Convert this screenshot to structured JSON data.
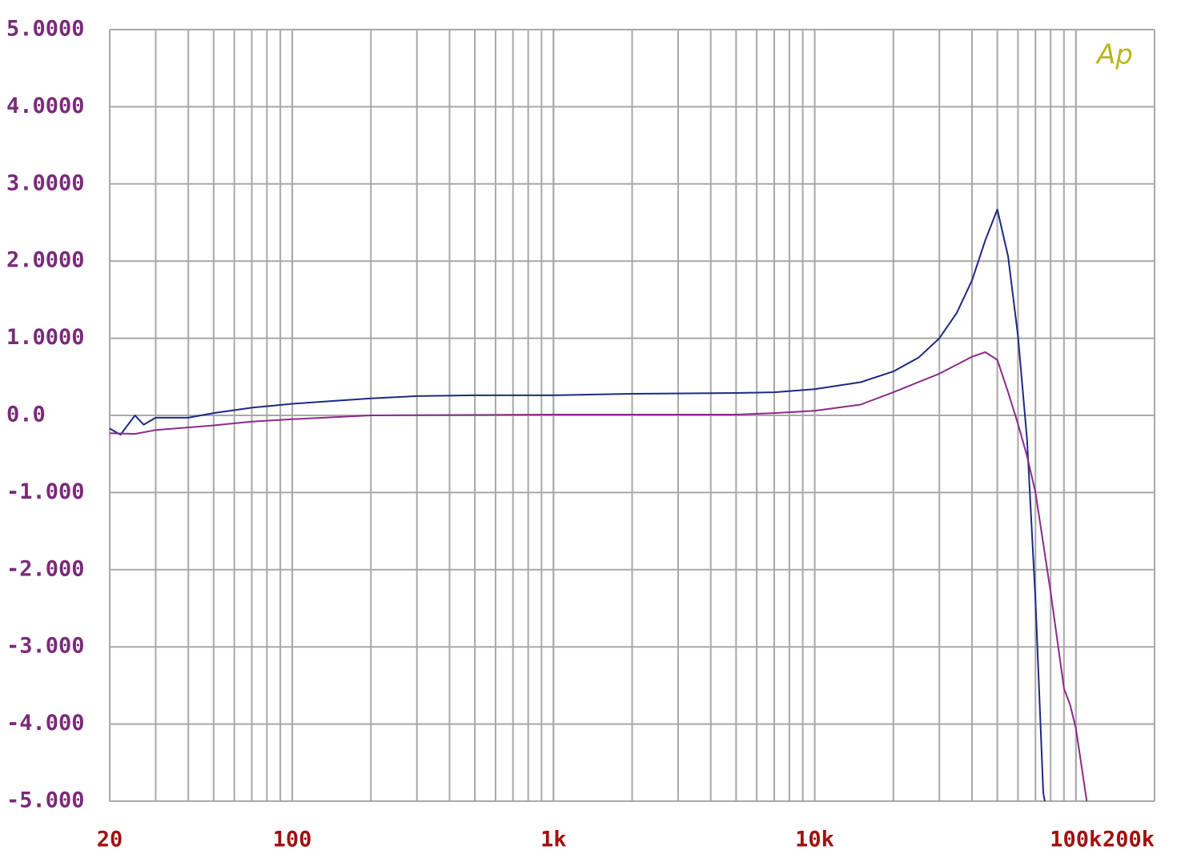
{
  "chart_data": {
    "type": "line",
    "logo": "Ap",
    "xscale": "log",
    "grid": true,
    "minor_grid": true,
    "xlim": [
      20,
      200000
    ],
    "ylim": [
      -5,
      5
    ],
    "xticks": [
      20,
      100,
      {
        "value": 1000,
        "label": "1k"
      },
      {
        "value": 10000,
        "label": "10k"
      },
      {
        "value": 100000,
        "label": "100k"
      },
      {
        "value": 200000,
        "label": "200k"
      }
    ],
    "yticks": [
      {
        "value": 5,
        "label": "5.0000"
      },
      {
        "value": 4,
        "label": "4.0000"
      },
      {
        "value": 3,
        "label": "3.0000"
      },
      {
        "value": 2,
        "label": "2.0000"
      },
      {
        "value": 1,
        "label": "1.0000"
      },
      {
        "value": 0,
        "label": "0.0"
      },
      {
        "value": -1,
        "label": "-1.000"
      },
      {
        "value": -2,
        "label": "-2.000"
      },
      {
        "value": -3,
        "label": "-3.000"
      },
      {
        "value": -4,
        "label": "-4.000"
      },
      {
        "value": -5,
        "label": "-5.000"
      }
    ],
    "series": [
      {
        "color": "#1c2a80",
        "x": [
          20,
          22,
          25,
          27,
          30,
          40,
          50,
          70,
          100,
          200,
          300,
          500,
          1000,
          2000,
          5000,
          7000,
          10000,
          15000,
          20000,
          25000,
          30000,
          35000,
          40000,
          45000,
          50000,
          55000,
          60000,
          65000,
          70000,
          75000,
          76000
        ],
        "values": [
          -0.17,
          -0.25,
          0.0,
          -0.12,
          -0.03,
          -0.03,
          0.03,
          0.1,
          0.15,
          0.22,
          0.25,
          0.26,
          0.26,
          0.28,
          0.29,
          0.3,
          0.34,
          0.43,
          0.57,
          0.75,
          1.0,
          1.33,
          1.75,
          2.27,
          2.67,
          2.06,
          1.03,
          -0.32,
          -2.4,
          -4.89,
          -5.0
        ]
      },
      {
        "color": "#8a2a8a",
        "x": [
          20,
          25,
          30,
          50,
          70,
          100,
          200,
          1000,
          5000,
          7000,
          10000,
          15000,
          20000,
          30000,
          40000,
          45000,
          50000,
          55000,
          60000,
          65000,
          70000,
          80000,
          90000,
          95000,
          100000,
          110000
        ],
        "values": [
          -0.23,
          -0.24,
          -0.19,
          -0.13,
          -0.08,
          -0.05,
          0.0,
          0.01,
          0.01,
          0.03,
          0.06,
          0.14,
          0.3,
          0.54,
          0.76,
          0.82,
          0.72,
          0.3,
          -0.11,
          -0.53,
          -1.0,
          -2.29,
          -3.54,
          -3.75,
          -4.06,
          -5.0
        ]
      }
    ]
  }
}
